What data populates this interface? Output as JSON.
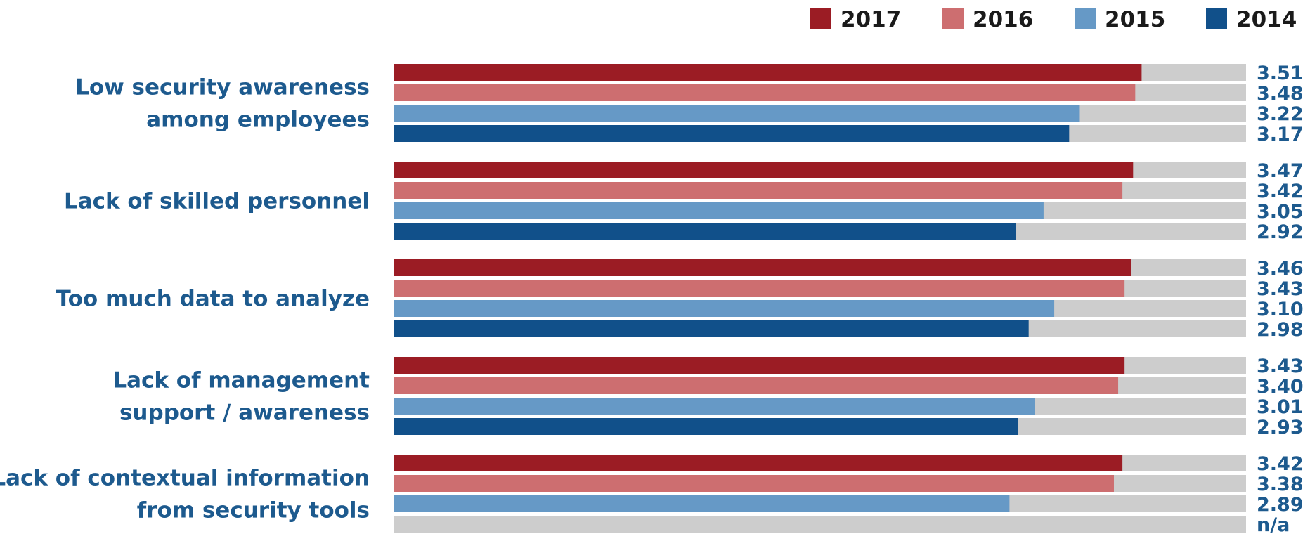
{
  "chart_data": {
    "type": "bar",
    "orientation": "horizontal",
    "xlim": [
      0,
      4
    ],
    "grid": false,
    "legend_position": "top-right",
    "categories": [
      [
        "Low security awareness",
        "among employees"
      ],
      [
        "Lack of skilled personnel"
      ],
      [
        "Too much data to analyze"
      ],
      [
        "Lack of management",
        "support / awareness"
      ],
      [
        "Lack of contextual information",
        "from security tools"
      ]
    ],
    "series": [
      {
        "name": "2017",
        "color": "#9b1c24",
        "values": [
          3.51,
          3.47,
          3.46,
          3.43,
          3.42
        ],
        "labels": [
          "3.51",
          "3.47",
          "3.46",
          "3.43",
          "3.42"
        ]
      },
      {
        "name": "2016",
        "color": "#cd6e70",
        "values": [
          3.48,
          3.42,
          3.43,
          3.4,
          3.38
        ],
        "labels": [
          "3.48",
          "3.42",
          "3.43",
          "3.40",
          "3.38"
        ]
      },
      {
        "name": "2015",
        "color": "#6699c6",
        "values": [
          3.22,
          3.05,
          3.1,
          3.01,
          2.89
        ],
        "labels": [
          "3.22",
          "3.05",
          "3.10",
          "3.01",
          "2.89"
        ]
      },
      {
        "name": "2014",
        "color": "#11508a",
        "values": [
          3.17,
          2.92,
          2.98,
          2.93,
          null
        ],
        "labels": [
          "3.17",
          "2.92",
          "2.98",
          "2.93",
          "n/a"
        ]
      }
    ],
    "track_color": "#cdcdcd",
    "label_color": "#1d5a8e"
  }
}
